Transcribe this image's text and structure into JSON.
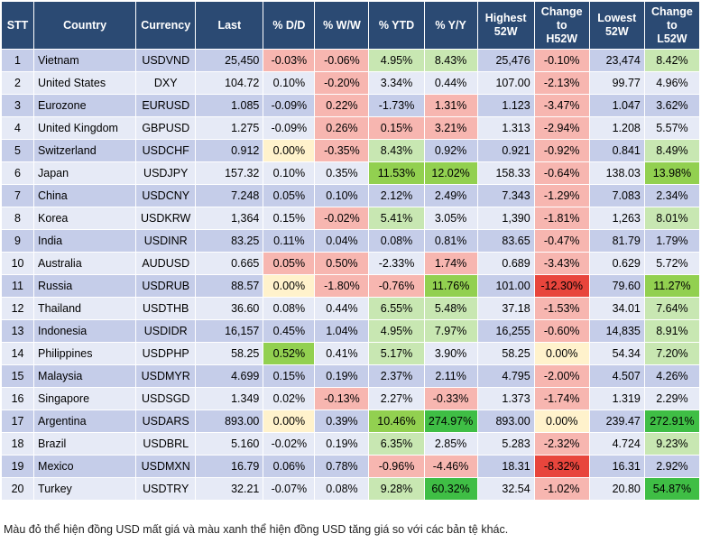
{
  "headers": {
    "stt": "STT",
    "country": "Country",
    "currency": "Currency",
    "last": "Last",
    "dd": "% D/D",
    "ww": "% W/W",
    "ytd": "% YTD",
    "yy": "% Y/Y",
    "highest": [
      "Highest",
      "52W"
    ],
    "change_h": [
      "Change",
      "to",
      "H52W"
    ],
    "lowest": [
      "Lowest",
      "52W"
    ],
    "change_l": [
      "Change",
      "to",
      "L52W"
    ]
  },
  "colors": {
    "header_bg": "#2b4a73",
    "row_odd": "#c5cde9",
    "row_even": "#e6eaf6",
    "red_dark": "#e8453c",
    "red_light": "#f7b6b0",
    "green_dark": "#3fbe45",
    "green_mid": "#92d050",
    "green_light": "#c8e7b2",
    "yellow": "#fff2cc"
  },
  "rows": [
    {
      "stt": "1",
      "country": "Vietnam",
      "currency": "USDVND",
      "last": "25,450",
      "dd": "-0.03%",
      "ww": "-0.06%",
      "ytd": "4.95%",
      "yy": "8.43%",
      "high": "25,476",
      "chh": "-0.10%",
      "low": "23,474",
      "chl": "8.42%",
      "fills": {
        "dd": "red_light",
        "ww": "red_light",
        "ytd": "green_light",
        "yy": "green_light",
        "chh": "red_light",
        "chl": "green_light"
      }
    },
    {
      "stt": "2",
      "country": "United States",
      "currency": "DXY",
      "last": "104.72",
      "dd": "0.10%",
      "ww": "-0.20%",
      "ytd": "3.34%",
      "yy": "0.44%",
      "high": "107.00",
      "chh": "-2.13%",
      "low": "99.77",
      "chl": "4.96%",
      "fills": {
        "ww": "red_light",
        "chh": "red_light"
      }
    },
    {
      "stt": "3",
      "country": "Eurozone",
      "currency": "EURUSD",
      "last": "1.085",
      "dd": "-0.09%",
      "ww": "0.22%",
      "ytd": "-1.73%",
      "yy": "1.31%",
      "high": "1.123",
      "chh": "-3.47%",
      "low": "1.047",
      "chl": "3.62%",
      "fills": {
        "ww": "red_light",
        "yy": "red_light",
        "chh": "red_light"
      }
    },
    {
      "stt": "4",
      "country": "United Kingdom",
      "currency": "GBPUSD",
      "last": "1.275",
      "dd": "-0.09%",
      "ww": "0.26%",
      "ytd": "0.15%",
      "yy": "3.21%",
      "high": "1.313",
      "chh": "-2.94%",
      "low": "1.208",
      "chl": "5.57%",
      "fills": {
        "ww": "red_light",
        "ytd": "red_light",
        "yy": "red_light",
        "chh": "red_light"
      }
    },
    {
      "stt": "5",
      "country": "Switzerland",
      "currency": "USDCHF",
      "last": "0.912",
      "dd": "0.00%",
      "ww": "-0.35%",
      "ytd": "8.43%",
      "yy": "0.92%",
      "high": "0.921",
      "chh": "-0.92%",
      "low": "0.841",
      "chl": "8.49%",
      "fills": {
        "dd": "yellow",
        "ww": "red_light",
        "ytd": "green_light",
        "chh": "red_light",
        "chl": "green_light"
      }
    },
    {
      "stt": "6",
      "country": "Japan",
      "currency": "USDJPY",
      "last": "157.32",
      "dd": "0.10%",
      "ww": "0.35%",
      "ytd": "11.53%",
      "yy": "12.02%",
      "high": "158.33",
      "chh": "-0.64%",
      "low": "138.03",
      "chl": "13.98%",
      "fills": {
        "ytd": "green_mid",
        "yy": "green_mid",
        "chh": "red_light",
        "chl": "green_mid"
      }
    },
    {
      "stt": "7",
      "country": "China",
      "currency": "USDCNY",
      "last": "7.248",
      "dd": "0.05%",
      "ww": "0.10%",
      "ytd": "2.12%",
      "yy": "2.49%",
      "high": "7.343",
      "chh": "-1.29%",
      "low": "7.083",
      "chl": "2.34%",
      "fills": {
        "chh": "red_light"
      }
    },
    {
      "stt": "8",
      "country": "Korea",
      "currency": "USDKRW",
      "last": "1,364",
      "dd": "0.15%",
      "ww": "-0.02%",
      "ytd": "5.41%",
      "yy": "3.05%",
      "high": "1,390",
      "chh": "-1.81%",
      "low": "1,263",
      "chl": "8.01%",
      "fills": {
        "ww": "red_light",
        "ytd": "green_light",
        "chh": "red_light",
        "chl": "green_light"
      }
    },
    {
      "stt": "9",
      "country": "India",
      "currency": "USDINR",
      "last": "83.25",
      "dd": "0.11%",
      "ww": "0.04%",
      "ytd": "0.08%",
      "yy": "0.81%",
      "high": "83.65",
      "chh": "-0.47%",
      "low": "81.79",
      "chl": "1.79%",
      "fills": {
        "chh": "red_light"
      }
    },
    {
      "stt": "10",
      "country": "Australia",
      "currency": "AUDUSD",
      "last": "0.665",
      "dd": "0.05%",
      "ww": "0.50%",
      "ytd": "-2.33%",
      "yy": "1.74%",
      "high": "0.689",
      "chh": "-3.43%",
      "low": "0.629",
      "chl": "5.72%",
      "fills": {
        "dd": "red_light",
        "ww": "red_light",
        "yy": "red_light",
        "chh": "red_light"
      }
    },
    {
      "stt": "11",
      "country": "Russia",
      "currency": "USDRUB",
      "last": "88.57",
      "dd": "0.00%",
      "ww": "-1.80%",
      "ytd": "-0.76%",
      "yy": "11.76%",
      "high": "101.00",
      "chh": "-12.30%",
      "low": "79.60",
      "chl": "11.27%",
      "fills": {
        "dd": "yellow",
        "ww": "red_light",
        "ytd": "red_light",
        "yy": "green_mid",
        "chh": "red_dark",
        "chl": "green_mid"
      }
    },
    {
      "stt": "12",
      "country": "Thailand",
      "currency": "USDTHB",
      "last": "36.60",
      "dd": "0.08%",
      "ww": "0.44%",
      "ytd": "6.55%",
      "yy": "5.48%",
      "high": "37.18",
      "chh": "-1.53%",
      "low": "34.01",
      "chl": "7.64%",
      "fills": {
        "ytd": "green_light",
        "yy": "green_light",
        "chh": "red_light",
        "chl": "green_light"
      }
    },
    {
      "stt": "13",
      "country": "Indonesia",
      "currency": "USDIDR",
      "last": "16,157",
      "dd": "0.45%",
      "ww": "1.04%",
      "ytd": "4.95%",
      "yy": "7.97%",
      "high": "16,255",
      "chh": "-0.60%",
      "low": "14,835",
      "chl": "8.91%",
      "fills": {
        "ytd": "green_light",
        "yy": "green_light",
        "chh": "red_light",
        "chl": "green_light"
      }
    },
    {
      "stt": "14",
      "country": "Philippines",
      "currency": "USDPHP",
      "last": "58.25",
      "dd": "0.52%",
      "ww": "0.41%",
      "ytd": "5.17%",
      "yy": "3.90%",
      "high": "58.25",
      "chh": "0.00%",
      "low": "54.34",
      "chl": "7.20%",
      "fills": {
        "dd": "green_mid",
        "ytd": "green_light",
        "chh": "yellow",
        "chl": "green_light"
      }
    },
    {
      "stt": "15",
      "country": "Malaysia",
      "currency": "USDMYR",
      "last": "4.699",
      "dd": "0.15%",
      "ww": "0.19%",
      "ytd": "2.37%",
      "yy": "2.11%",
      "high": "4.795",
      "chh": "-2.00%",
      "low": "4.507",
      "chl": "4.26%",
      "fills": {
        "chh": "red_light"
      }
    },
    {
      "stt": "16",
      "country": "Singapore",
      "currency": "USDSGD",
      "last": "1.349",
      "dd": "0.02%",
      "ww": "-0.13%",
      "ytd": "2.27%",
      "yy": "-0.33%",
      "high": "1.373",
      "chh": "-1.74%",
      "low": "1.319",
      "chl": "2.29%",
      "fills": {
        "ww": "red_light",
        "yy": "red_light",
        "chh": "red_light"
      }
    },
    {
      "stt": "17",
      "country": "Argentina",
      "currency": "USDARS",
      "last": "893.00",
      "dd": "0.00%",
      "ww": "0.39%",
      "ytd": "10.46%",
      "yy": "274.97%",
      "high": "893.00",
      "chh": "0.00%",
      "low": "239.47",
      "chl": "272.91%",
      "fills": {
        "dd": "yellow",
        "ytd": "green_mid",
        "yy": "green_dark",
        "chh": "yellow",
        "chl": "green_dark"
      }
    },
    {
      "stt": "18",
      "country": "Brazil",
      "currency": "USDBRL",
      "last": "5.160",
      "dd": "-0.02%",
      "ww": "0.19%",
      "ytd": "6.35%",
      "yy": "2.85%",
      "high": "5.283",
      "chh": "-2.32%",
      "low": "4.724",
      "chl": "9.23%",
      "fills": {
        "ytd": "green_light",
        "chh": "red_light",
        "chl": "green_light"
      }
    },
    {
      "stt": "19",
      "country": "Mexico",
      "currency": "USDMXN",
      "last": "16.79",
      "dd": "0.06%",
      "ww": "0.78%",
      "ytd": "-0.96%",
      "yy": "-4.46%",
      "high": "18.31",
      "chh": "-8.32%",
      "low": "16.31",
      "chl": "2.92%",
      "fills": {
        "ytd": "red_light",
        "yy": "red_light",
        "chh": "red_dark"
      }
    },
    {
      "stt": "20",
      "country": "Turkey",
      "currency": "USDTRY",
      "last": "32.21",
      "dd": "-0.07%",
      "ww": "0.08%",
      "ytd": "9.28%",
      "yy": "60.32%",
      "high": "32.54",
      "chh": "-1.02%",
      "low": "20.80",
      "chl": "54.87%",
      "fills": {
        "ytd": "green_light",
        "yy": "green_dark",
        "chh": "red_light",
        "chl": "green_dark"
      }
    }
  ],
  "footnote": "Màu đỏ thể hiện đồng USD mất giá và màu xanh thể hiện đồng USD tăng giá so với các bản tệ khác."
}
